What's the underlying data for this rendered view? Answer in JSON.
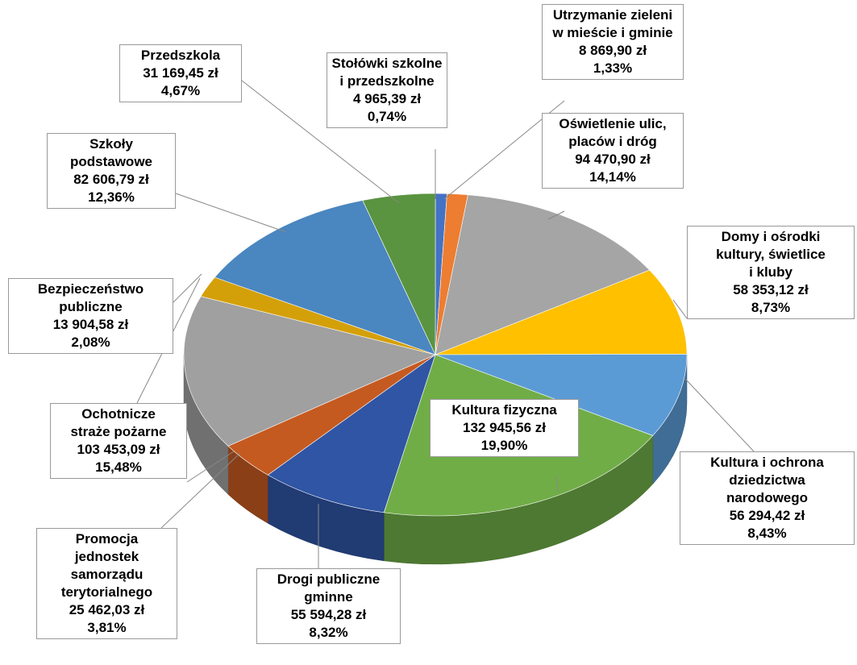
{
  "chart_data": {
    "type": "pie",
    "categories": [
      "Stołówki szkolne\ni przedszkolne",
      "Utrzymanie zieleni\nw mieście i gminie",
      "Oświetlenie ulic,\nplaców i dróg",
      "Domy i ośrodki\nkultury, świetlice\ni kluby",
      "Kultura i ochrona\ndziedzictwa\nnarodowego",
      "Kultura fizyczna",
      "Drogi publiczne\ngminne",
      "Promocja\njednostek\nsamorządu\nterytorialnego",
      "Ochotnicze\nstraże pożarne",
      "Bezpieczeństwo\npubliczne",
      "Szkoły\npodstawowe",
      "Przedszkola"
    ],
    "values": [
      0.74,
      1.33,
      14.14,
      8.73,
      8.43,
      19.9,
      8.32,
      3.81,
      15.48,
      2.08,
      12.36,
      4.67
    ],
    "value_labels": [
      "0,74%",
      "1,33%",
      "14,14%",
      "8,73%",
      "8,43%",
      "19,90%",
      "8,32%",
      "3,81%",
      "15,48%",
      "2,08%",
      "12,36%",
      "4,67%"
    ],
    "amounts": [
      4965.39,
      8869.9,
      94470.9,
      58353.12,
      56294.42,
      132945.56,
      55594.28,
      25462.03,
      103453.09,
      13904.58,
      82606.79,
      31169.45
    ],
    "amount_labels": [
      "4 965,39 zł",
      "8 869,90 zł",
      "94 470,90 zł",
      "58 353,12 zł",
      "56 294,42 zł",
      "132 945,56 zł",
      "55 594,28 zł",
      "25 462,03 zł",
      "103 453,09 zł",
      "13 904,58 zł",
      "82 606,79 zł",
      "31 169,45 zł"
    ],
    "colors": [
      "#4472c4",
      "#ed7d31",
      "#a5a5a5",
      "#ffc000",
      "#5b9bd5",
      "#70ad47",
      "#2f55a4",
      "#c55a21",
      "#a0a0a0",
      "#d4a00a",
      "#4a86c0",
      "#5a9440"
    ]
  }
}
